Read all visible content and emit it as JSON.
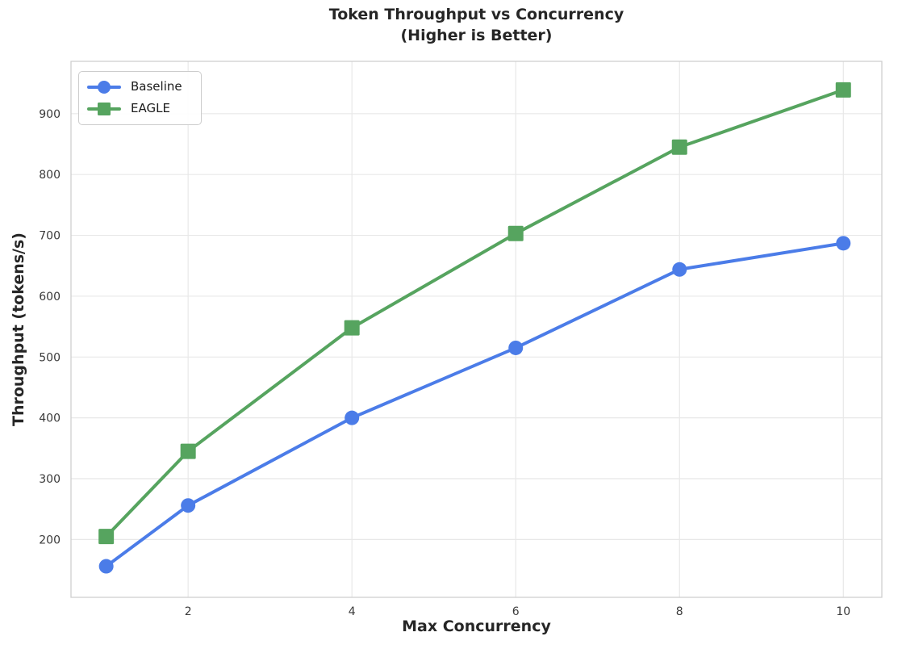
{
  "figure": {
    "background": "#ffffff"
  },
  "chart_data": {
    "type": "line",
    "title": "Token Throughput vs Concurrency",
    "subtitle": "(Higher is Better)",
    "xlabel": "Max Concurrency",
    "ylabel": "Throughput (tokens/s)",
    "x": [
      1,
      2,
      4,
      6,
      8,
      10
    ],
    "series": [
      {
        "name": "Baseline",
        "marker": "circle",
        "color": "#4b7ce8",
        "values": [
          156,
          256,
          400,
          515,
          644,
          687
        ]
      },
      {
        "name": "EAGLE",
        "marker": "square",
        "color": "#56a45f",
        "values": [
          205,
          345,
          548,
          703,
          845,
          939
        ]
      }
    ],
    "xticks": [
      2,
      4,
      6,
      8,
      10
    ],
    "yticks": [
      200,
      300,
      400,
      500,
      600,
      700,
      800,
      900
    ],
    "xlim": [
      0.57,
      10.47
    ],
    "ylim": [
      105,
      986
    ],
    "grid": true,
    "legend_position": "upper-left",
    "colors": {
      "grid": "#e8e8e8",
      "spine": "#cfcfcf",
      "tick_text": "#3a3a3a",
      "title_text": "#262626",
      "legend_border": "#cccccc",
      "background": "#ffffff"
    }
  }
}
